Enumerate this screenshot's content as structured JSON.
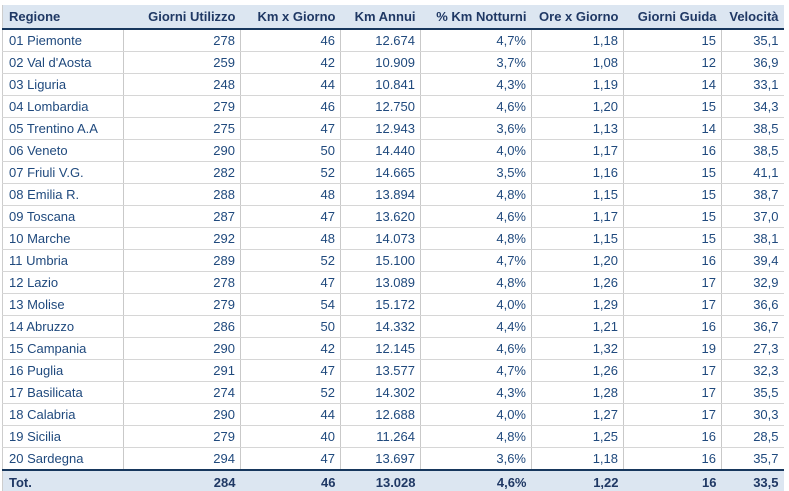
{
  "chart_data": {
    "type": "table",
    "columns": [
      "Regione",
      "Giorni Utilizzo",
      "Km x Giorno",
      "Km Annui",
      "% Km Notturni",
      "Ore x Giorno",
      "Giorni Guida",
      "Velocità"
    ],
    "rows": [
      [
        "01 Piemonte",
        "278",
        "46",
        "12.674",
        "4,7%",
        "1,18",
        "15",
        "35,1"
      ],
      [
        "02 Val d'Aosta",
        "259",
        "42",
        "10.909",
        "3,7%",
        "1,08",
        "12",
        "36,9"
      ],
      [
        "03 Liguria",
        "248",
        "44",
        "10.841",
        "4,3%",
        "1,19",
        "14",
        "33,1"
      ],
      [
        "04 Lombardia",
        "279",
        "46",
        "12.750",
        "4,6%",
        "1,20",
        "15",
        "34,3"
      ],
      [
        "05 Trentino A.A",
        "275",
        "47",
        "12.943",
        "3,6%",
        "1,13",
        "14",
        "38,5"
      ],
      [
        "06 Veneto",
        "290",
        "50",
        "14.440",
        "4,0%",
        "1,17",
        "16",
        "38,5"
      ],
      [
        "07 Friuli V.G.",
        "282",
        "52",
        "14.665",
        "3,5%",
        "1,16",
        "15",
        "41,1"
      ],
      [
        "08 Emilia R.",
        "288",
        "48",
        "13.894",
        "4,8%",
        "1,15",
        "15",
        "38,7"
      ],
      [
        "09 Toscana",
        "287",
        "47",
        "13.620",
        "4,6%",
        "1,17",
        "15",
        "37,0"
      ],
      [
        "10 Marche",
        "292",
        "48",
        "14.073",
        "4,8%",
        "1,15",
        "15",
        "38,1"
      ],
      [
        "11 Umbria",
        "289",
        "52",
        "15.100",
        "4,7%",
        "1,20",
        "16",
        "39,4"
      ],
      [
        "12 Lazio",
        "278",
        "47",
        "13.089",
        "4,8%",
        "1,26",
        "17",
        "32,9"
      ],
      [
        "13 Molise",
        "279",
        "54",
        "15.172",
        "4,0%",
        "1,29",
        "17",
        "36,6"
      ],
      [
        "14 Abruzzo",
        "286",
        "50",
        "14.332",
        "4,4%",
        "1,21",
        "16",
        "36,7"
      ],
      [
        "15 Campania",
        "290",
        "42",
        "12.145",
        "4,6%",
        "1,32",
        "19",
        "27,3"
      ],
      [
        "16 Puglia",
        "291",
        "47",
        "13.577",
        "4,7%",
        "1,26",
        "17",
        "32,3"
      ],
      [
        "17 Basilicata",
        "274",
        "52",
        "14.302",
        "4,3%",
        "1,28",
        "17",
        "35,5"
      ],
      [
        "18 Calabria",
        "290",
        "44",
        "12.688",
        "4,0%",
        "1,27",
        "17",
        "30,3"
      ],
      [
        "19 Sicilia",
        "279",
        "40",
        "11.264",
        "4,8%",
        "1,25",
        "16",
        "28,5"
      ],
      [
        "20 Sardegna",
        "294",
        "47",
        "13.697",
        "3,6%",
        "1,18",
        "16",
        "35,7"
      ]
    ],
    "total_row": [
      "Tot.",
      "284",
      "46",
      "13.028",
      "4,6%",
      "1,22",
      "16",
      "33,5"
    ],
    "layout_hints": {
      "header_style": "bold navy on light blue band, heavy navy rule below",
      "total_style": "bold navy on light blue band, heavy navy rule above",
      "grid": "light gray row and column separators in body only"
    }
  },
  "colors": {
    "header_bg": "#dce6f1",
    "header_text": "#1f3864",
    "body_text": "#1f497d",
    "grid_horizontal": "#d6d6d6",
    "grid_vertical": "#c9c9c9",
    "accent_rule": "#17375d"
  }
}
